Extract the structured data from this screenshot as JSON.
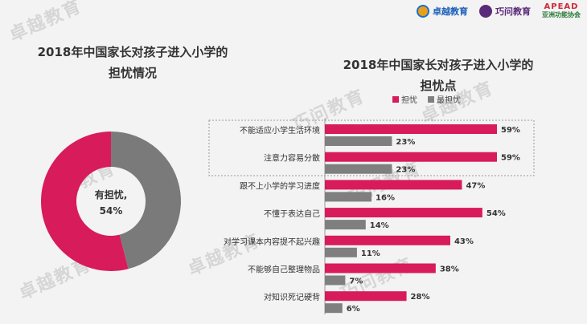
{
  "logos": {
    "brand1": "卓越教育",
    "brand2": "巧问教育",
    "brand3_top": "APEAD",
    "brand3_bottom": "亚洲功能协会"
  },
  "watermarks": [
    "卓越教育",
    "巧问教育",
    "卓越教育",
    "巧问教育",
    "卓越教育",
    "巧问教育",
    "卓越教育",
    "巧问教育"
  ],
  "left_title_line1": "2018年中国家长对孩子进入小学的",
  "left_title_line2": "担忧情况",
  "right_title_line1": "2018年中国家长对孩子进入小学的",
  "right_title_line2": "担忧点",
  "colors": {
    "worry": "#d81b5a",
    "most": "#7f7f7f",
    "donut_bg": "#7a7a7a"
  },
  "chart_data": [
    {
      "type": "pie",
      "title": "2018年中国家长对孩子进入小学的担忧情况",
      "slices": [
        {
          "name": "有担忧",
          "value": 54
        },
        {
          "name": "",
          "value": 46
        }
      ],
      "center_label": "有担忧,",
      "center_value": "54%"
    },
    {
      "type": "bar",
      "orientation": "horizontal",
      "title": "2018年中国家长对孩子进入小学的担忧点",
      "legend_position": "top",
      "categories": [
        "不能适应小学生活环境",
        "注意力容易分散",
        "跟不上小学的学习进度",
        "不懂于表达自己",
        "对学习课本内容提不起兴趣",
        "不能够自己整理物品",
        "对知识死记硬背"
      ],
      "series": [
        {
          "name": "担忧",
          "values": [
            59,
            59,
            47,
            54,
            43,
            38,
            28
          ]
        },
        {
          "name": "最担忧",
          "values": [
            23,
            23,
            16,
            14,
            11,
            7,
            6
          ]
        }
      ],
      "ylim": [
        0,
        60
      ]
    }
  ]
}
